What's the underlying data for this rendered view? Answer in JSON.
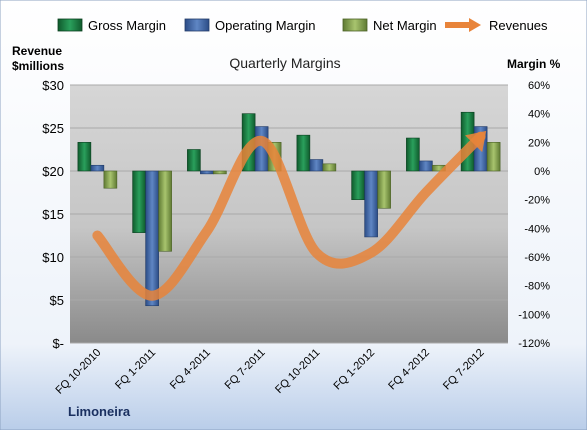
{
  "chart_data": {
    "type": "bar",
    "title": "Quarterly Margins",
    "left_axis_label": [
      "Revenue",
      "$millions"
    ],
    "right_axis_label": "Margin %",
    "company": "Limoneira",
    "categories": [
      "FQ 10-2010",
      "FQ 1-2011",
      "FQ 4-2011",
      "FQ 7-2011",
      "FQ 10-2011",
      "FQ 1-2012",
      "FQ 4-2012",
      "FQ 7-2012"
    ],
    "series": [
      {
        "name": "Gross Margin",
        "axis": "right",
        "kind": "bar",
        "values": [
          20,
          -43,
          15,
          40,
          25,
          -20,
          23,
          41
        ]
      },
      {
        "name": "Operating Margin",
        "axis": "right",
        "kind": "bar",
        "values": [
          4,
          -94,
          -2,
          31,
          8,
          -46,
          7,
          31
        ]
      },
      {
        "name": "Net Margin",
        "axis": "right",
        "kind": "bar",
        "values": [
          -12,
          -56,
          -2,
          20,
          5,
          -26,
          4,
          20
        ]
      },
      {
        "name": "Revenues",
        "axis": "left",
        "kind": "line",
        "values": [
          12.5,
          5.5,
          13,
          23.5,
          10.5,
          10.5,
          17.5,
          24
        ]
      }
    ],
    "left_axis": {
      "min": 0,
      "max": 30,
      "ticks": [
        "$-",
        "$5",
        "$10",
        "$15",
        "$20",
        "$25",
        "$30"
      ]
    },
    "right_axis": {
      "min": -120,
      "max": 60,
      "ticks": [
        "-120%",
        "-100%",
        "-80%",
        "-60%",
        "-40%",
        "-20%",
        "0%",
        "20%",
        "40%",
        "60%"
      ]
    },
    "legend_position": "top",
    "grid": true,
    "colors": {
      "Gross Margin": "#1f8a4c",
      "Operating Margin": "#4a6fae",
      "Net Margin": "#8fae5a",
      "Revenues": "#e8843a"
    }
  }
}
